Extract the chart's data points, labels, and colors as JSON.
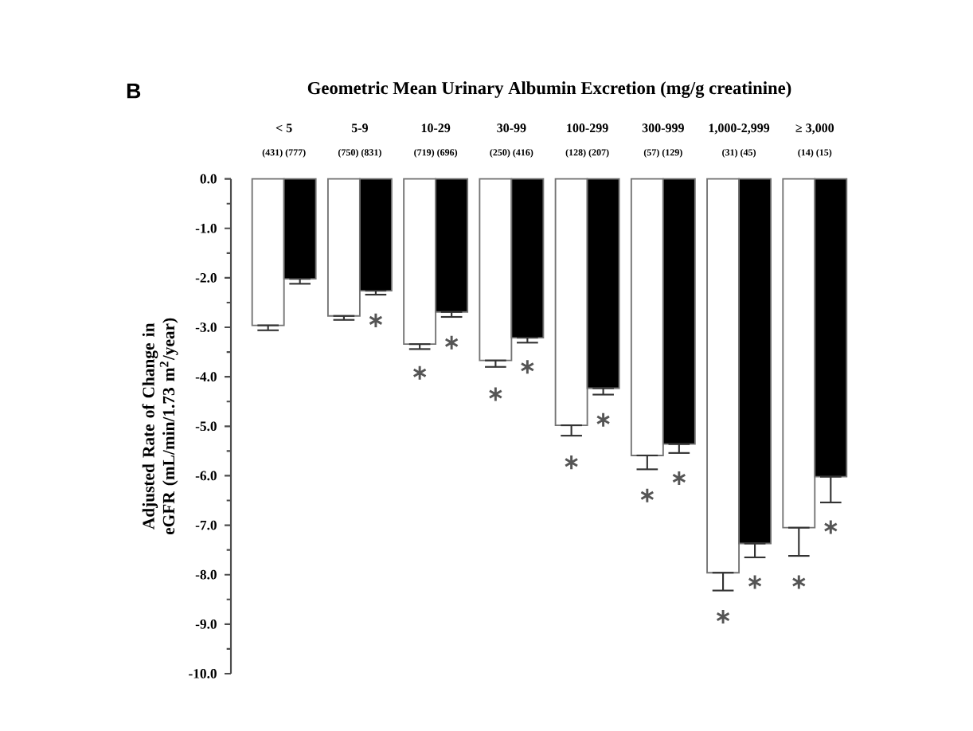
{
  "chart_data": {
    "type": "bar",
    "title": "Geometric Mean Urinary Albumin Excretion (mg/g creatinine)",
    "ylabel": "Adjusted Rate of Change in eGFR (mL/min/1.73 m$^{2}$/year)",
    "categories": [
      "< 5",
      "5-9",
      "10-29",
      "30-99",
      "100-299",
      "300-999",
      "1,000-2,999",
      "≥ 3,000"
    ],
    "series": [
      {
        "color": "#ffffff",
        "values": [
          -2.96,
          -2.77,
          -3.34,
          -3.67,
          -4.98,
          -5.59,
          -7.96,
          -7.05
        ],
        "errors": [
          [
            -3.06,
            -2.96
          ],
          [
            -2.85,
            -2.77
          ],
          [
            -3.44,
            -3.34
          ],
          [
            -3.8,
            -3.67
          ],
          [
            -5.19,
            -4.98
          ],
          [
            -5.87,
            -5.59
          ],
          [
            -8.32,
            -7.96
          ],
          [
            -7.62,
            -7.05
          ]
        ]
      },
      {
        "color": "#000000",
        "values": [
          -2.02,
          -2.26,
          -2.69,
          -3.21,
          -4.23,
          -5.36,
          -7.37,
          -6.02
        ],
        "errors": [
          [
            -2.12,
            -2.02
          ],
          [
            -2.34,
            -2.26
          ],
          [
            -2.79,
            -2.69
          ],
          [
            -3.31,
            -3.21
          ],
          [
            -4.36,
            -4.23
          ],
          [
            -5.54,
            -5.36
          ],
          [
            -7.65,
            -7.37
          ],
          [
            -6.54,
            -6.02
          ]
        ]
      },
      {
        "type": "scatter",
        "color": "#555555",
        "values": [
          null,
          null,
          -3.92,
          -4.35,
          -5.73,
          -6.4,
          -8.85,
          -8.15
        ]
      },
      {
        "type": "scatter",
        "color": "#555555",
        "values": [
          null,
          -2.86,
          -3.31,
          -3.8,
          -4.87,
          -6.05,
          -8.15,
          -7.04
        ]
      }
    ],
    "marker": "cross",
    "ylim": [
      -10,
      0
    ],
    "yticks": [
      {
        "value": 0,
        "label": "0.0"
      },
      {
        "value": -1,
        "label": "-1.0"
      },
      {
        "value": -2,
        "label": "-2.0"
      },
      {
        "value": -3,
        "label": "-3.0"
      },
      {
        "value": -4,
        "label": "-4.0"
      },
      {
        "value": -5,
        "label": "-5.0"
      },
      {
        "value": -6,
        "label": "-6.0"
      },
      {
        "value": -7,
        "label": "-7.0"
      },
      {
        "value": -8,
        "label": "-8.0"
      },
      {
        "value": -9,
        "label": "-9.0"
      },
      {
        "value": -10,
        "label": "-10.0"
      }
    ],
    "annotations": [
      "B",
      "(431) (777)",
      "(750) (831)",
      "(719) (696)",
      "(250) (416)",
      "(128) (207)",
      "(57) (129)",
      "(31) (45)",
      "(14) (15)"
    ]
  }
}
